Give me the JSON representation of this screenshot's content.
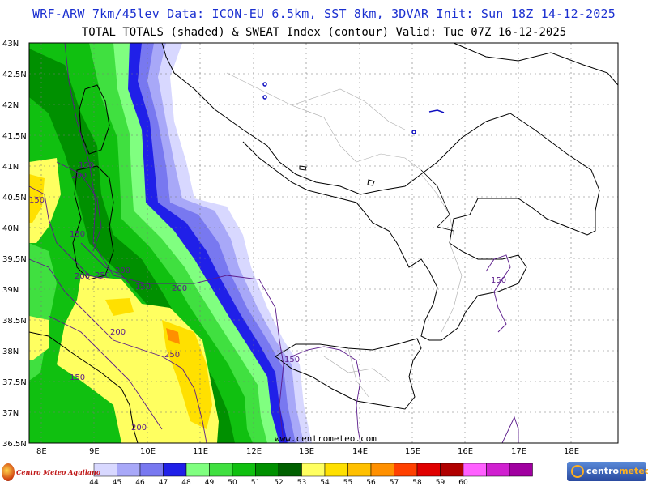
{
  "header": {
    "line1": "WRF-ARW 7km/45lev  Data: ICON-EU 6.5km, SST 8km, 3DVAR  Init: Sun 18Z 14-12-2025",
    "line2": "TOTAL TOTALS (shaded) & SWEAT Index (contour)  Valid: Tue 07Z 16-12-2025"
  },
  "axes": {
    "lat_labels": [
      "43N",
      "42.5N",
      "42N",
      "41.5N",
      "41N",
      "40.5N",
      "40N",
      "39.5N",
      "39N",
      "38.5N",
      "38N",
      "37.5N",
      "37N",
      "36.5N"
    ],
    "lon_labels": [
      "8E",
      "9E",
      "10E",
      "11E",
      "12E",
      "13E",
      "14E",
      "15E",
      "16E",
      "17E",
      "18E"
    ]
  },
  "contour_labels": [
    "150",
    "200",
    "150",
    "150",
    "200",
    "250",
    "200",
    "150",
    "200",
    "200",
    "250",
    "150",
    "200",
    "150",
    "150"
  ],
  "credit": "www.centrometeo.com",
  "colorbar": {
    "labels": [
      "44",
      "45",
      "46",
      "47",
      "48",
      "49",
      "50",
      "51",
      "52",
      "53",
      "54",
      "55",
      "56",
      "57",
      "58",
      "59",
      "60"
    ],
    "colors": [
      "#d8d8ff",
      "#a8a8f8",
      "#7878f0",
      "#2020e8",
      "#80ff80",
      "#40e040",
      "#10c010",
      "#009000",
      "#006000",
      "#ffff60",
      "#ffe000",
      "#ffc000",
      "#ff9000",
      "#ff4000",
      "#e00000",
      "#b00000",
      "#ff60ff",
      "#d020d0",
      "#a000a0"
    ]
  },
  "logos": {
    "left": "Centro Meteo Aquilano",
    "right_a": "centro",
    "right_b": "meteo"
  }
}
